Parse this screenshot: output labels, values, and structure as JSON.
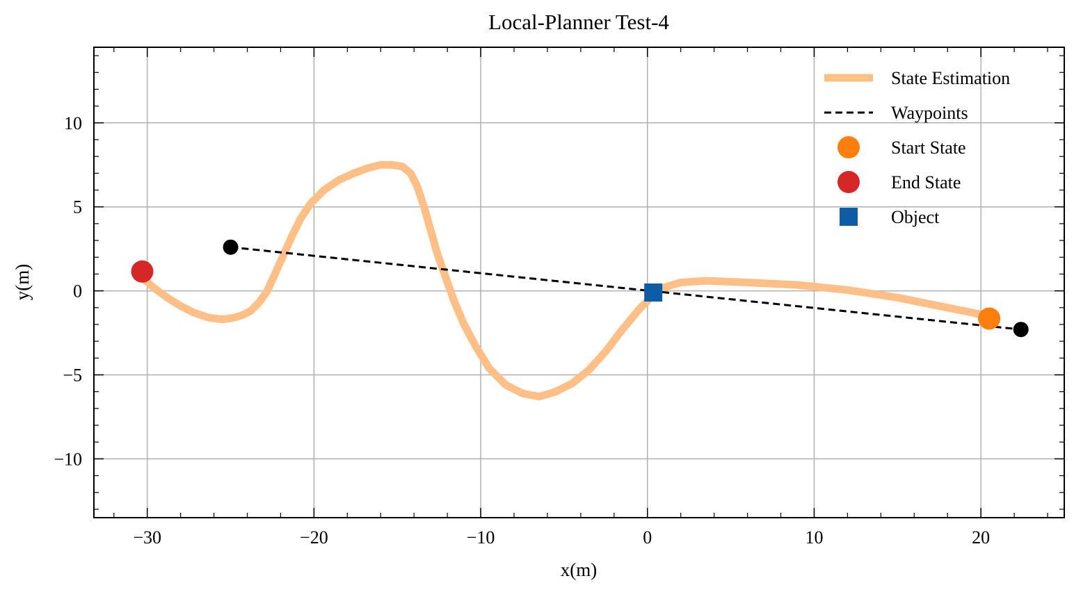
{
  "chart_data": {
    "type": "line",
    "title": "Local-Planner Test-4",
    "xlabel": "x(m)",
    "ylabel": "y(m)",
    "xlim": [
      -33.2,
      25.0
    ],
    "ylim": [
      -13.5,
      14.5
    ],
    "xticks": [
      -30,
      -20,
      -10,
      0,
      10,
      20
    ],
    "yticks": [
      -10,
      -5,
      0,
      5,
      10
    ],
    "xtick_labels": [
      "−30",
      "−20",
      "−10",
      "0",
      "10",
      "20"
    ],
    "ytick_labels": [
      "−10",
      "−5",
      "0",
      "5",
      "10"
    ],
    "grid": true,
    "legend_position": "top-right",
    "series": [
      {
        "name": "State Estimation",
        "kind": "line",
        "color": "#ffbf86",
        "x": [
          20.5,
          18.0,
          15.0,
          12.0,
          9.0,
          6.0,
          3.5,
          2.0,
          1.0,
          0.3,
          -0.5,
          -1.5,
          -2.5,
          -3.5,
          -4.5,
          -5.5,
          -6.5,
          -7.5,
          -8.5,
          -9.5,
          -10.3,
          -11.0,
          -11.6,
          -12.1,
          -12.6,
          -13.0,
          -13.4,
          -13.8,
          -14.2,
          -14.7,
          -15.3,
          -16.0,
          -16.8,
          -17.6,
          -18.5,
          -19.4,
          -20.2,
          -20.8,
          -21.3,
          -21.8,
          -22.3,
          -22.8,
          -23.3,
          -23.8,
          -24.3,
          -24.8,
          -25.5,
          -26.3,
          -27.2,
          -28.0,
          -28.8,
          -29.5,
          -30.1,
          -30.4
        ],
        "y": [
          -1.5,
          -1.0,
          -0.4,
          0.05,
          0.35,
          0.5,
          0.6,
          0.5,
          0.2,
          -0.3,
          -1.1,
          -2.3,
          -3.6,
          -4.7,
          -5.5,
          -6.0,
          -6.3,
          -6.1,
          -5.6,
          -4.6,
          -3.3,
          -2.0,
          -0.6,
          0.8,
          2.2,
          3.6,
          5.0,
          6.2,
          7.0,
          7.4,
          7.5,
          7.5,
          7.3,
          7.0,
          6.6,
          6.0,
          5.2,
          4.3,
          3.3,
          2.2,
          1.1,
          0.0,
          -0.7,
          -1.2,
          -1.45,
          -1.6,
          -1.7,
          -1.6,
          -1.3,
          -0.9,
          -0.4,
          0.1,
          0.6,
          1.1
        ]
      },
      {
        "name": "Waypoints",
        "kind": "dashed-line",
        "color": "#000000",
        "x": [
          -25.0,
          22.4
        ],
        "y": [
          2.6,
          -2.3
        ]
      },
      {
        "name": "Start State",
        "kind": "marker-circle",
        "color": "#ff7f0e",
        "x": [
          20.5
        ],
        "y": [
          -1.65
        ]
      },
      {
        "name": "End State",
        "kind": "marker-circle",
        "color": "#d62728",
        "x": [
          -30.3
        ],
        "y": [
          1.15
        ]
      },
      {
        "name": "Object",
        "kind": "marker-square",
        "color": "#0c5da5",
        "x": [
          0.35
        ],
        "y": [
          -0.1
        ]
      }
    ],
    "waypoint_markers": {
      "color": "#000000",
      "x": [
        -25.0,
        22.4
      ],
      "y": [
        2.6,
        -2.3
      ]
    }
  }
}
